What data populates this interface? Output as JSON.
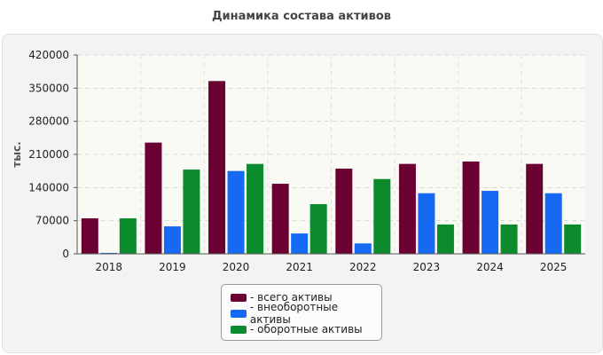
{
  "chart_data": {
    "type": "bar",
    "title": "Динамика состава активов",
    "ylabel": "тыс.",
    "xlabel": "",
    "categories": [
      "2018",
      "2019",
      "2020",
      "2021",
      "2022",
      "2023",
      "2024",
      "2025"
    ],
    "ylim": [
      0,
      420000
    ],
    "yticks": [
      0,
      70000,
      140000,
      210000,
      280000,
      350000,
      420000
    ],
    "grid": true,
    "legend_position": "bottom-center",
    "series": [
      {
        "name": "- всего активы",
        "color": "#6b0033",
        "values": [
          75000,
          235000,
          365000,
          148000,
          180000,
          190000,
          195000,
          190000
        ]
      },
      {
        "name": "- внеоборотные активы",
        "color": "#1569f2",
        "values": [
          2000,
          58000,
          175000,
          43000,
          22000,
          128000,
          133000,
          128000
        ]
      },
      {
        "name": "- оборотные активы",
        "color": "#0b8a2e",
        "values": [
          75000,
          178000,
          190000,
          105000,
          158000,
          62000,
          62000,
          62000
        ]
      }
    ]
  }
}
